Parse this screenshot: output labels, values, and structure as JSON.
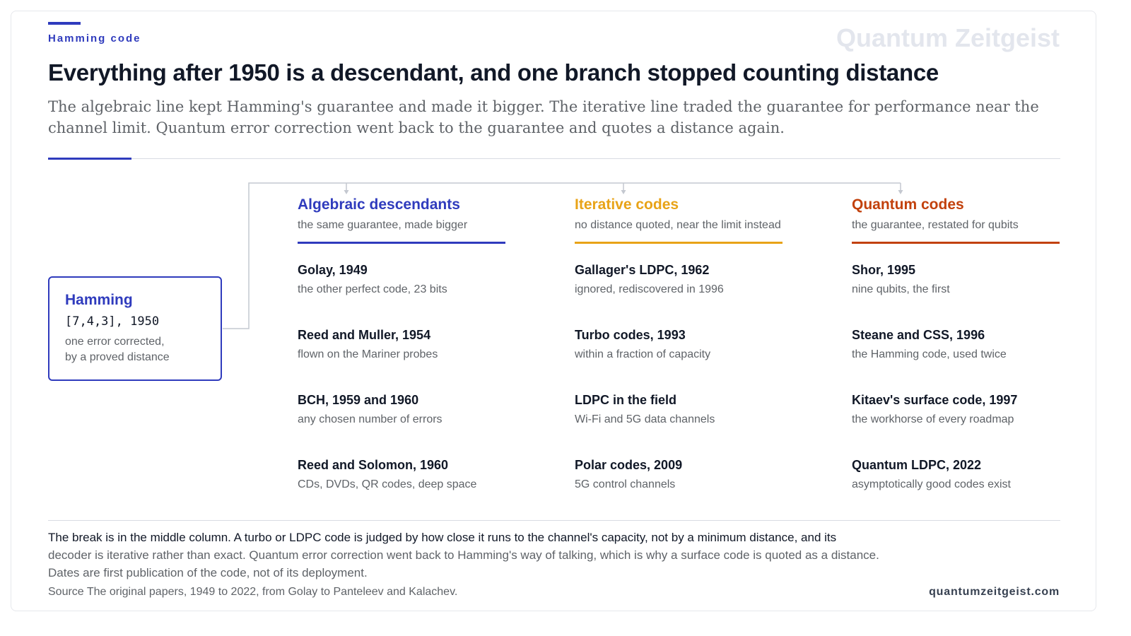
{
  "header": {
    "kicker": "Hamming code",
    "brand_watermark": "Quantum Zeitgeist",
    "title": "Everything after 1950 is a descendant, and one branch stopped counting distance",
    "subtitle": "The algebraic line kept Hamming's guarantee and made it bigger. The iterative line traded the guarantee for performance near the channel limit. Quantum error correction went back to the guarantee and quotes a distance again."
  },
  "colors": {
    "accent": "#2f3bbd",
    "algebraic": "#2f3bbd",
    "iterative": "#e8a317",
    "quantum": "#c2410c",
    "connector": "#c4c8d0"
  },
  "root": {
    "title": "Hamming",
    "code": "[7,4,3], 1950",
    "desc_line1": "one error corrected,",
    "desc_line2": "by a proved distance"
  },
  "columns": [
    {
      "title": "Algebraic descendants",
      "subtitle": "the same guarantee, made bigger",
      "items": [
        {
          "title": "Golay, 1949",
          "desc": "the other perfect code, 23 bits"
        },
        {
          "title": "Reed and Muller, 1954",
          "desc": "flown on the Mariner probes"
        },
        {
          "title": "BCH, 1959 and 1960",
          "desc": "any chosen number of errors"
        },
        {
          "title": "Reed and Solomon, 1960",
          "desc": "CDs, DVDs, QR codes, deep space"
        }
      ]
    },
    {
      "title": "Iterative codes",
      "subtitle": "no distance quoted, near the limit instead",
      "items": [
        {
          "title": "Gallager's LDPC, 1962",
          "desc": "ignored, rediscovered in 1996"
        },
        {
          "title": "Turbo codes, 1993",
          "desc": "within a fraction of capacity"
        },
        {
          "title": "LDPC in the field",
          "desc": "Wi-Fi and 5G data channels"
        },
        {
          "title": "Polar codes, 2009",
          "desc": "5G control channels"
        }
      ]
    },
    {
      "title": "Quantum codes",
      "subtitle": "the guarantee, restated for qubits",
      "items": [
        {
          "title": "Shor, 1995",
          "desc": "nine qubits, the first"
        },
        {
          "title": "Steane and CSS, 1996",
          "desc": "the Hamming code, used twice"
        },
        {
          "title": "Kitaev's surface code, 1997",
          "desc": "the workhorse of every roadmap"
        },
        {
          "title": "Quantum LDPC, 2022",
          "desc": "asymptotically good codes exist"
        }
      ]
    }
  ],
  "footer": {
    "note_lead": "The break is in the middle column. A turbo or LDPC code is judged by how close it runs to the channel's capacity, not by a minimum distance, and its",
    "note_rest": "decoder is iterative rather than exact. Quantum error correction went back to Hamming's way of talking, which is why a surface code is quoted as a distance.",
    "note_dates": "Dates are first publication of the code, not of its deployment.",
    "source": "Source  The original papers, 1949 to 2022, from Golay to Panteleev and Kalachev.",
    "site": "quantumzeitgeist.com"
  }
}
